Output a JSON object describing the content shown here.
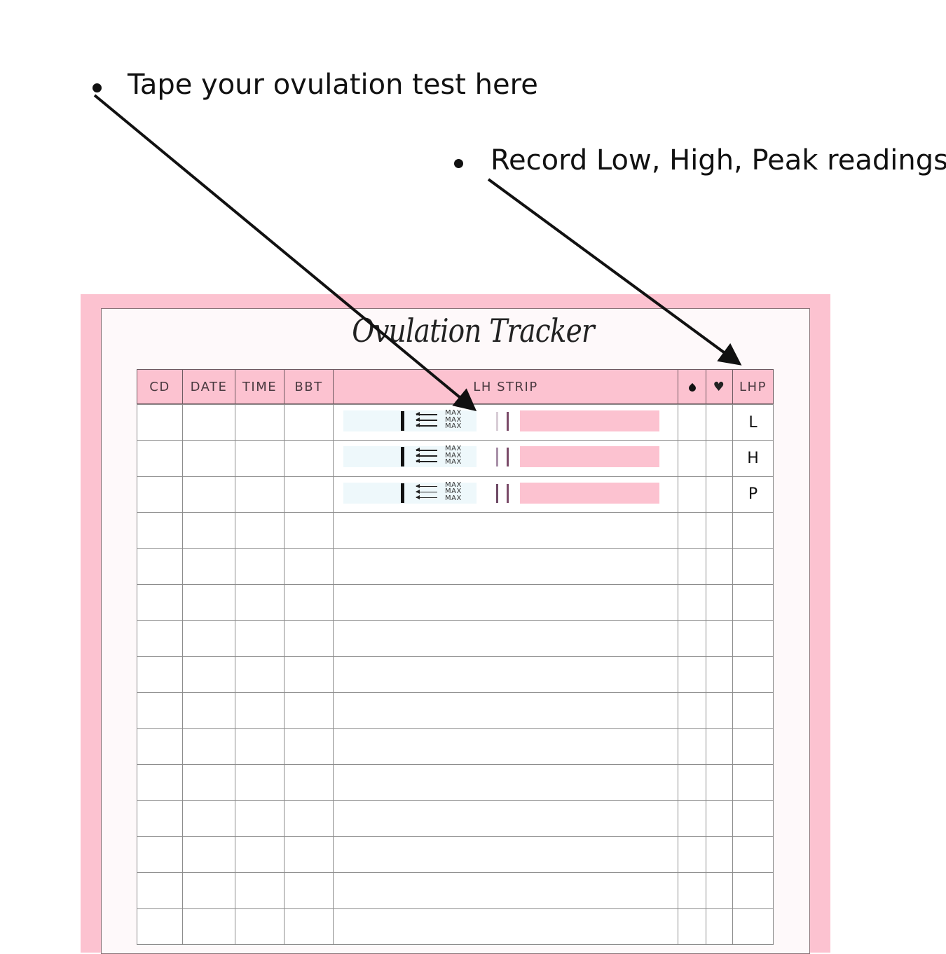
{
  "annotations": [
    {
      "text": "Tape your ovulation test here"
    },
    {
      "text": "Record Low, High, Peak readings"
    }
  ],
  "tracker": {
    "title": "Ovulation Tracker",
    "columns": [
      "CD",
      "DATE",
      "TIME",
      "BBT",
      "LH STRIP",
      "",
      "",
      "LHP"
    ],
    "column_icons": {
      "5": "drop-icon",
      "6": "heart-icon"
    },
    "strip_label": "MAX",
    "rows": [
      {
        "lhp": "L",
        "strip": true,
        "test_line": "faint"
      },
      {
        "lhp": "H",
        "strip": true,
        "test_line": "medium"
      },
      {
        "lhp": "P",
        "strip": true,
        "test_line": "dark"
      },
      {
        "lhp": ""
      },
      {
        "lhp": ""
      },
      {
        "lhp": ""
      },
      {
        "lhp": ""
      },
      {
        "lhp": ""
      },
      {
        "lhp": ""
      },
      {
        "lhp": ""
      },
      {
        "lhp": ""
      },
      {
        "lhp": ""
      },
      {
        "lhp": ""
      },
      {
        "lhp": ""
      },
      {
        "lhp": ""
      }
    ]
  },
  "colors": {
    "accent_pink": "#fcc2d0",
    "faint": "#d8cdd6",
    "medium": "#a890a8",
    "dark": "#6e4a66"
  }
}
